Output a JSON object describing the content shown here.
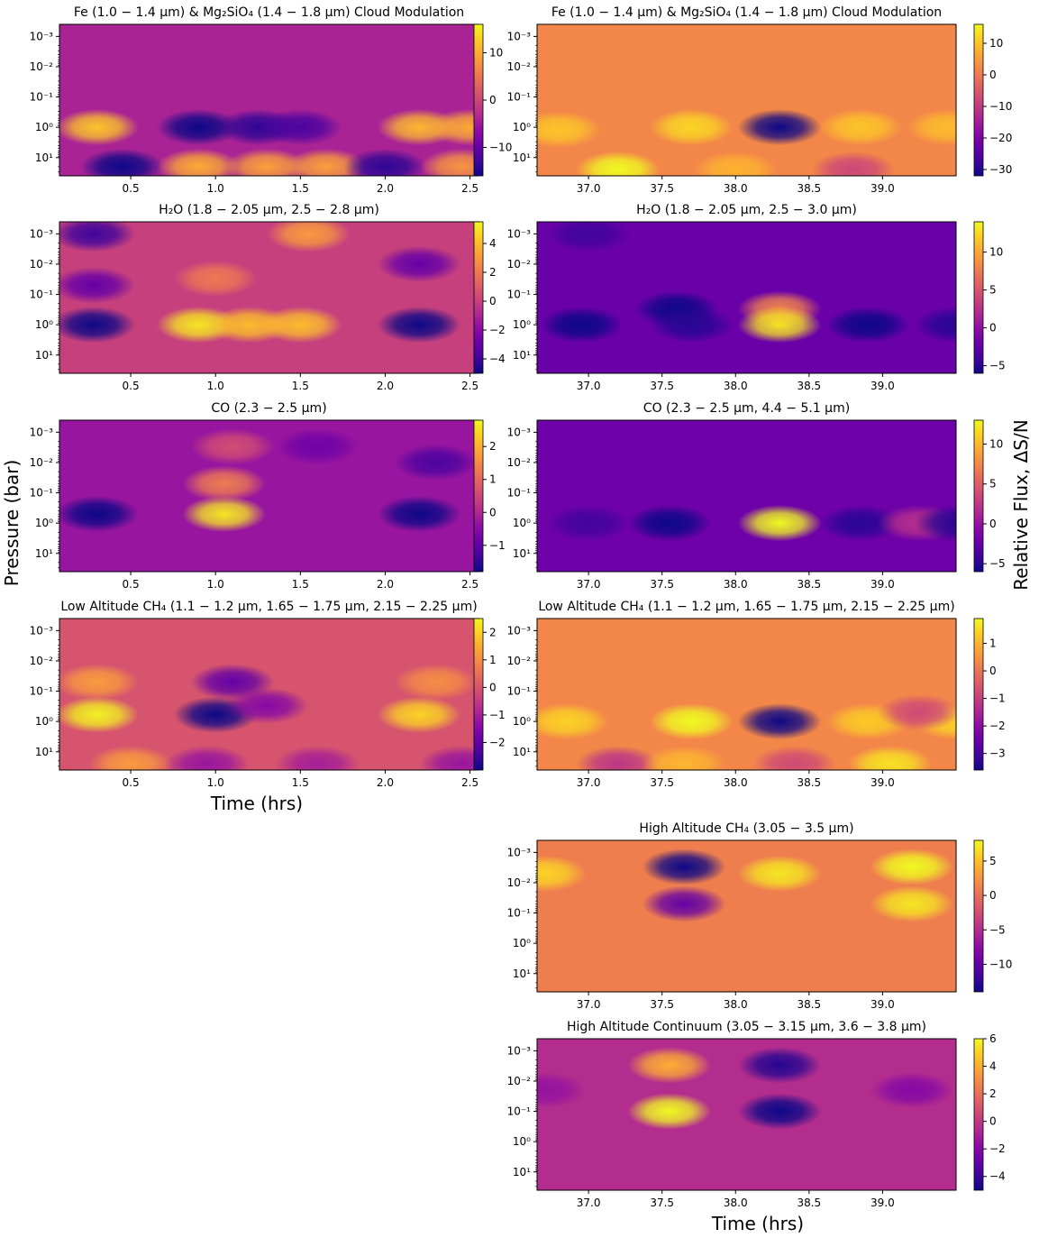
{
  "figure": {
    "ylabel": "Pressure (bar)",
    "colorbar_label": "Relative Flux, ΔS/N",
    "xlabel_left": "Time (hrs)",
    "xlabel_right": "Time (hrs)",
    "colormap": "plasma"
  },
  "chart_data": [
    {
      "type": "heatmap",
      "title": "Fe (1.0 − 1.4 μm) & Mg₂SiO₄ (1.4 − 1.8 μm) Cloud Modulation",
      "x_ticks": [
        "0.5",
        "1.0",
        "1.5",
        "2.0",
        "2.5"
      ],
      "xlim": [
        0.08,
        2.55
      ],
      "y_ticks": [
        "10⁻³",
        "10⁻²",
        "10⁻¹",
        "10⁰",
        "10¹"
      ],
      "y_scale": "log",
      "y_inverted": true,
      "colorbar_ticks": [
        "10",
        "0",
        "−10"
      ],
      "vmin": -16,
      "vmax": 16,
      "base": -4,
      "features": [
        {
          "x": 0.3,
          "p": 1,
          "v": 12
        },
        {
          "x": 0.9,
          "p": 1,
          "v": -16
        },
        {
          "x": 1.25,
          "p": 1,
          "v": -14
        },
        {
          "x": 1.5,
          "p": 1,
          "v": -12
        },
        {
          "x": 2.2,
          "p": 1,
          "v": 11
        },
        {
          "x": 2.5,
          "p": 1,
          "v": 10
        },
        {
          "x": 0.45,
          "p": 20,
          "v": -16
        },
        {
          "x": 0.9,
          "p": 20,
          "v": 10
        },
        {
          "x": 1.3,
          "p": 20,
          "v": 9
        },
        {
          "x": 1.65,
          "p": 20,
          "v": 9
        },
        {
          "x": 2.0,
          "p": 20,
          "v": -14
        },
        {
          "x": 2.45,
          "p": 20,
          "v": 8
        }
      ]
    },
    {
      "type": "heatmap",
      "title": "Fe (1.0 − 1.4 μm) & Mg₂SiO₄ (1.4 − 1.8 μm) Cloud Modulation",
      "x_ticks": [
        "37.0",
        "37.5",
        "38.0",
        "38.5",
        "39.0"
      ],
      "xlim": [
        36.65,
        39.5
      ],
      "y_ticks": [
        "10⁻³",
        "10⁻²",
        "10⁻¹",
        "10⁰",
        "10¹"
      ],
      "y_scale": "log",
      "y_inverted": true,
      "colorbar_ticks": [
        "10",
        "0",
        "−10",
        "−20",
        "−30"
      ],
      "vmin": -32,
      "vmax": 16,
      "base": 2,
      "features": [
        {
          "x": 36.8,
          "p": 1.2,
          "v": 10
        },
        {
          "x": 37.7,
          "p": 1,
          "v": 12
        },
        {
          "x": 38.3,
          "p": 1,
          "v": -32
        },
        {
          "x": 38.85,
          "p": 1,
          "v": 10
        },
        {
          "x": 39.45,
          "p": 1,
          "v": 9
        },
        {
          "x": 37.2,
          "p": 25,
          "v": 16
        },
        {
          "x": 38.0,
          "p": 25,
          "v": 8
        },
        {
          "x": 38.8,
          "p": 25,
          "v": -8
        }
      ]
    },
    {
      "type": "heatmap",
      "title": "H₂O (1.8 − 2.05 μm, 2.5 − 2.8 μm)",
      "x_ticks": [
        "0.5",
        "1.0",
        "1.5",
        "2.0",
        "2.5"
      ],
      "xlim": [
        0.08,
        2.55
      ],
      "y_ticks": [
        "10⁻³",
        "10⁻²",
        "10⁻¹",
        "10⁰",
        "10¹"
      ],
      "y_scale": "log",
      "y_inverted": true,
      "colorbar_ticks": [
        "4",
        "2",
        "0",
        "−2",
        "−4"
      ],
      "vmin": -5,
      "vmax": 5.5,
      "base": 0,
      "features": [
        {
          "x": 0.28,
          "p": 1,
          "v": -5
        },
        {
          "x": 0.28,
          "p": 0.05,
          "v": -3
        },
        {
          "x": 0.28,
          "p": 0.001,
          "v": -4
        },
        {
          "x": 0.9,
          "p": 1,
          "v": 5
        },
        {
          "x": 1.2,
          "p": 1,
          "v": 4
        },
        {
          "x": 1.5,
          "p": 1,
          "v": 4
        },
        {
          "x": 1.0,
          "p": 0.03,
          "v": 2
        },
        {
          "x": 1.55,
          "p": 0.001,
          "v": 3
        },
        {
          "x": 2.2,
          "p": 1,
          "v": -5
        },
        {
          "x": 2.2,
          "p": 0.01,
          "v": -3
        }
      ]
    },
    {
      "type": "heatmap",
      "title": "H₂O (1.8 − 2.05 μm, 2.5 − 3.0 μm)",
      "x_ticks": [
        "37.0",
        "37.5",
        "38.0",
        "38.5",
        "39.0"
      ],
      "xlim": [
        36.65,
        39.5
      ],
      "y_ticks": [
        "10⁻³",
        "10⁻²",
        "10⁻¹",
        "10⁰",
        "10¹"
      ],
      "y_scale": "log",
      "y_inverted": true,
      "colorbar_ticks": [
        "10",
        "5",
        "0",
        "−5"
      ],
      "vmin": -6,
      "vmax": 14,
      "base": -2,
      "features": [
        {
          "x": 36.95,
          "p": 1,
          "v": -6
        },
        {
          "x": 37.6,
          "p": 0.3,
          "v": -6
        },
        {
          "x": 37.7,
          "p": 1,
          "v": -5
        },
        {
          "x": 38.3,
          "p": 0.3,
          "v": 8
        },
        {
          "x": 38.3,
          "p": 1,
          "v": 13
        },
        {
          "x": 38.9,
          "p": 1,
          "v": -6
        },
        {
          "x": 39.5,
          "p": 1,
          "v": -5
        },
        {
          "x": 37.0,
          "p": 0.001,
          "v": -4
        }
      ]
    },
    {
      "type": "heatmap",
      "title": "CO (2.3 − 2.5 μm)",
      "x_ticks": [
        "0.5",
        "1.0",
        "1.5",
        "2.0",
        "2.5"
      ],
      "xlim": [
        0.08,
        2.55
      ],
      "y_ticks": [
        "10⁻³",
        "10⁻²",
        "10⁻¹",
        "10⁰",
        "10¹"
      ],
      "y_scale": "log",
      "y_inverted": true,
      "colorbar_ticks": [
        "2",
        "1",
        "0",
        "−1"
      ],
      "vmin": -1.8,
      "vmax": 2.8,
      "base": -0.3,
      "features": [
        {
          "x": 0.3,
          "p": 0.5,
          "v": -1.8
        },
        {
          "x": 1.05,
          "p": 0.5,
          "v": 2.6
        },
        {
          "x": 1.05,
          "p": 0.05,
          "v": 1.3
        },
        {
          "x": 1.1,
          "p": 0.003,
          "v": 0.6
        },
        {
          "x": 2.2,
          "p": 0.5,
          "v": -1.8
        },
        {
          "x": 2.3,
          "p": 0.01,
          "v": -1.2
        },
        {
          "x": 1.6,
          "p": 0.003,
          "v": -0.8
        }
      ]
    },
    {
      "type": "heatmap",
      "title": "CO (2.3 − 2.5 μm, 4.4 − 5.1 μm)",
      "x_ticks": [
        "37.0",
        "37.5",
        "38.0",
        "38.5",
        "39.0"
      ],
      "xlim": [
        36.65,
        39.5
      ],
      "y_ticks": [
        "10⁻³",
        "10⁻²",
        "10⁻¹",
        "10⁰",
        "10¹"
      ],
      "y_scale": "log",
      "y_inverted": true,
      "colorbar_ticks": [
        "10",
        "5",
        "0",
        "−5"
      ],
      "vmin": -6,
      "vmax": 13,
      "base": -2,
      "features": [
        {
          "x": 37.55,
          "p": 1,
          "v": -6
        },
        {
          "x": 37.0,
          "p": 1,
          "v": -4
        },
        {
          "x": 38.3,
          "p": 1,
          "v": 13
        },
        {
          "x": 38.85,
          "p": 1,
          "v": -5
        },
        {
          "x": 39.25,
          "p": 1,
          "v": 2
        },
        {
          "x": 39.5,
          "p": 1,
          "v": -5
        }
      ]
    },
    {
      "type": "heatmap",
      "title": "Low Altitude CH₄ (1.1 − 1.2 μm,  1.65 − 1.75 μm,  2.15 − 2.25 μm)",
      "x_ticks": [
        "0.5",
        "1.0",
        "1.5",
        "2.0",
        "2.5"
      ],
      "xlim": [
        0.08,
        2.55
      ],
      "y_ticks": [
        "10⁻³",
        "10⁻²",
        "10⁻¹",
        "10⁰",
        "10¹"
      ],
      "y_scale": "log",
      "y_inverted": true,
      "colorbar_ticks": [
        "2",
        "1",
        "0",
        "−1",
        "−2"
      ],
      "vmin": -3,
      "vmax": 2.5,
      "base": 0,
      "features": [
        {
          "x": 0.3,
          "p": 0.6,
          "v": 2.4
        },
        {
          "x": 0.3,
          "p": 0.05,
          "v": 1.2
        },
        {
          "x": 1.0,
          "p": 0.6,
          "v": -3
        },
        {
          "x": 1.1,
          "p": 0.05,
          "v": -2
        },
        {
          "x": 1.3,
          "p": 0.3,
          "v": -1.5
        },
        {
          "x": 2.2,
          "p": 0.6,
          "v": 2
        },
        {
          "x": 2.3,
          "p": 0.05,
          "v": 1
        },
        {
          "x": 0.5,
          "p": 25,
          "v": 1.2
        },
        {
          "x": 0.95,
          "p": 25,
          "v": -1.2
        },
        {
          "x": 1.6,
          "p": 25,
          "v": -1
        },
        {
          "x": 2.45,
          "p": 25,
          "v": -1.2
        }
      ]
    },
    {
      "type": "heatmap",
      "title": "Low Altitude CH₄ (1.1 − 1.2 μm,  1.65 − 1.75 μm,  2.15 − 2.25 μm)",
      "x_ticks": [
        "37.0",
        "37.5",
        "38.0",
        "38.5",
        "39.0"
      ],
      "xlim": [
        36.65,
        39.5
      ],
      "y_ticks": [
        "10⁻³",
        "10⁻²",
        "10⁻¹",
        "10⁰",
        "10¹"
      ],
      "y_scale": "log",
      "y_inverted": true,
      "colorbar_ticks": [
        "1",
        "0",
        "−1",
        "−2",
        "−3"
      ],
      "vmin": -3.6,
      "vmax": 1.9,
      "base": 0.3,
      "features": [
        {
          "x": 36.85,
          "p": 1,
          "v": 1.4
        },
        {
          "x": 37.7,
          "p": 1,
          "v": 1.9
        },
        {
          "x": 38.3,
          "p": 1,
          "v": -3.6
        },
        {
          "x": 38.9,
          "p": 1,
          "v": 1.3
        },
        {
          "x": 39.5,
          "p": 1,
          "v": 1.4
        },
        {
          "x": 37.2,
          "p": 25,
          "v": -1.2
        },
        {
          "x": 37.65,
          "p": 25,
          "v": 1.0
        },
        {
          "x": 38.4,
          "p": 25,
          "v": -0.8
        },
        {
          "x": 39.05,
          "p": 25,
          "v": 1.6
        },
        {
          "x": 39.25,
          "p": 0.5,
          "v": -0.8
        }
      ]
    },
    {
      "type": "heatmap",
      "title": "High Altitude CH₄ (3.05 − 3.5 μm)",
      "x_ticks": [
        "37.0",
        "37.5",
        "38.0",
        "38.5",
        "39.0"
      ],
      "xlim": [
        36.65,
        39.5
      ],
      "y_ticks": [
        "10⁻³",
        "10⁻²",
        "10⁻¹",
        "10⁰",
        "10¹"
      ],
      "y_scale": "log",
      "y_inverted": true,
      "colorbar_ticks": [
        "5",
        "0",
        "−5",
        "−10"
      ],
      "vmin": -14,
      "vmax": 8,
      "base": 1,
      "features": [
        {
          "x": 36.7,
          "p": 0.005,
          "v": 6
        },
        {
          "x": 37.65,
          "p": 0.003,
          "v": -14
        },
        {
          "x": 37.65,
          "p": 0.05,
          "v": -10
        },
        {
          "x": 38.3,
          "p": 0.005,
          "v": 7
        },
        {
          "x": 39.2,
          "p": 0.003,
          "v": 8
        },
        {
          "x": 39.2,
          "p": 0.05,
          "v": 7
        }
      ]
    },
    {
      "type": "heatmap",
      "title": "High Altitude Continuum (3.05 − 3.15 μm,  3.6 − 3.8 μm)",
      "x_ticks": [
        "37.0",
        "37.5",
        "38.0",
        "38.5",
        "39.0"
      ],
      "xlim": [
        36.65,
        39.5
      ],
      "y_ticks": [
        "10⁻³",
        "10⁻²",
        "10⁻¹",
        "10⁰",
        "10¹"
      ],
      "y_scale": "log",
      "y_inverted": true,
      "colorbar_ticks": [
        "6",
        "4",
        "2",
        "0",
        "−2",
        "−4"
      ],
      "vmin": -5,
      "vmax": 6,
      "base": -0.5,
      "features": [
        {
          "x": 37.55,
          "p": 0.1,
          "v": 6
        },
        {
          "x": 37.55,
          "p": 0.003,
          "v": 4
        },
        {
          "x": 38.3,
          "p": 0.1,
          "v": -5
        },
        {
          "x": 38.3,
          "p": 0.003,
          "v": -4.5
        },
        {
          "x": 39.2,
          "p": 0.02,
          "v": -2
        },
        {
          "x": 36.7,
          "p": 0.02,
          "v": -1.5
        }
      ]
    }
  ]
}
